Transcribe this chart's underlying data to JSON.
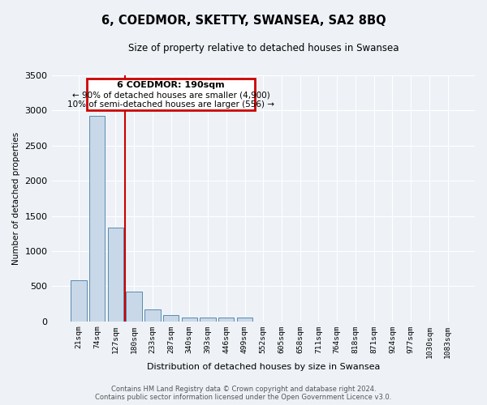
{
  "title": "6, COEDMOR, SKETTY, SWANSEA, SA2 8BQ",
  "subtitle": "Size of property relative to detached houses in Swansea",
  "xlabel": "Distribution of detached houses by size in Swansea",
  "ylabel": "Number of detached properties",
  "bar_values": [
    580,
    2920,
    1330,
    430,
    175,
    90,
    60,
    50,
    55,
    55,
    0,
    0,
    0,
    0,
    0,
    0,
    0,
    0,
    0,
    0,
    0
  ],
  "bar_labels": [
    "21sqm",
    "74sqm",
    "127sqm",
    "180sqm",
    "233sqm",
    "287sqm",
    "340sqm",
    "393sqm",
    "446sqm",
    "499sqm",
    "552sqm",
    "605sqm",
    "658sqm",
    "711sqm",
    "764sqm",
    "818sqm",
    "871sqm",
    "924sqm",
    "977sqm",
    "1030sqm",
    "1083sqm"
  ],
  "bar_color": "#c8d8e8",
  "bar_edgecolor": "#5a8ab0",
  "ylim": [
    0,
    3500
  ],
  "yticks": [
    0,
    500,
    1000,
    1500,
    2000,
    2500,
    3000,
    3500
  ],
  "vline_x_index": 3,
  "vline_color": "#cc0000",
  "annotation_title": "6 COEDMOR: 190sqm",
  "annotation_line1": "← 90% of detached houses are smaller (4,900)",
  "annotation_line2": "10% of semi-detached houses are larger (556) →",
  "annotation_box_color": "#cc0000",
  "background_color": "#eef2f7",
  "grid_color": "#ffffff",
  "footer_line1": "Contains HM Land Registry data © Crown copyright and database right 2024.",
  "footer_line2": "Contains public sector information licensed under the Open Government Licence v3.0."
}
